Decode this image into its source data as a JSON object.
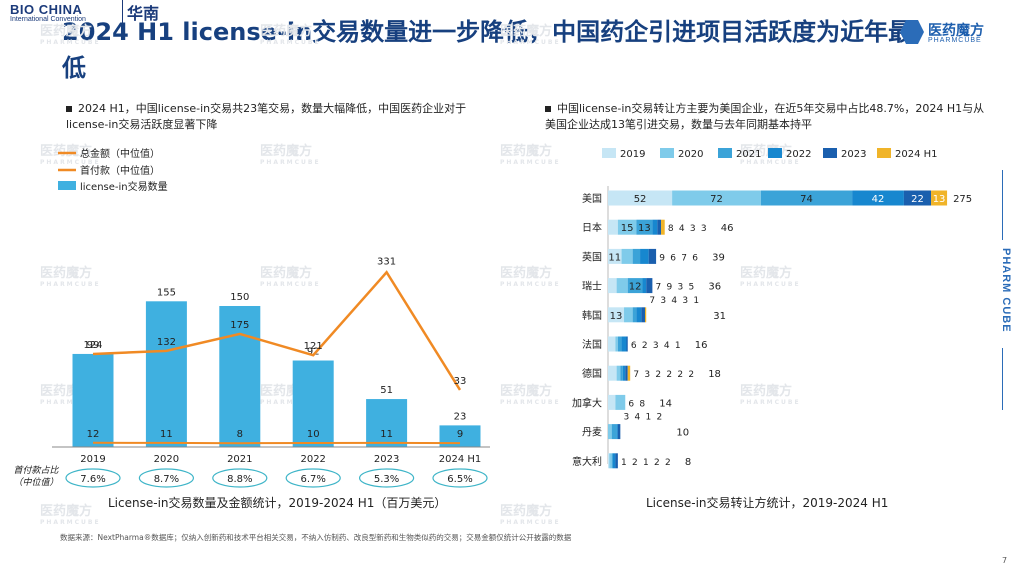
{
  "brand": {
    "bio": "BIO CHINA",
    "convention": "International Convention",
    "region": "华南"
  },
  "title": "2024 H1 license-in交易数量进一步降低，中国药企引进项目活跃度为近年最低",
  "logo": {
    "cn": "医药魔方",
    "en": "PHARMCUBE",
    "side": "PHARM CUBE"
  },
  "bullet_left": "2024 H1，中国license-in交易共23笔交易，数量大幅降低，中国医药企业对于license-in交易活跃度显著下降",
  "bullet_right": "中国license-in交易转让方主要为美国企业，在近5年交易中占比48.7%，2024 H1与从美国企业达成13笔引进交易，数量与去年同期基本持平",
  "caption_left": "License-in交易数量及金额统计，2019-2024 H1（百万美元）",
  "caption_right": "License-in交易转让方统计，2019-2024 H1",
  "source": "数据来源：NextPharma®数据库；仅纳入创新药和技术平台相关交易，不纳入仿制药、改良型新药和生物类似药的交易；交易金额仅统计公开披露的数据",
  "page_number": "7",
  "colors": {
    "title": "#17407f",
    "bar": "#3fb0e0",
    "line": "#f08a24",
    "ratio_border": "#3fb5c8"
  },
  "chart_data": [
    {
      "type": "bar",
      "categories": [
        "2019",
        "2020",
        "2021",
        "2022",
        "2023",
        "2024 H1"
      ],
      "series": [
        {
          "name": "license-in交易数量",
          "values": [
            99,
            155,
            150,
            92,
            51,
            23
          ]
        },
        {
          "name": "总金额（中位值）",
          "values": [
            124,
            132,
            175,
            121,
            331,
            33
          ]
        },
        {
          "name": "首付款（中位值）",
          "values": [
            12,
            11,
            8,
            10,
            11,
            9
          ]
        }
      ],
      "ratio_label": "首付款占比（中位值）",
      "ratios": [
        "7.6%",
        "8.7%",
        "8.8%",
        "6.7%",
        "5.3%",
        "6.5%"
      ]
    },
    {
      "type": "bar",
      "stacked": true,
      "orientation": "horizontal",
      "series_names": [
        "2019",
        "2020",
        "2021",
        "2022",
        "2023",
        "2024 H1"
      ],
      "series_colors": [
        "#c6e6f5",
        "#7fcbea",
        "#3ba3d8",
        "#1787cf",
        "#1a5fae",
        "#f0b429"
      ],
      "rows": [
        {
          "label": "美国",
          "values": [
            52,
            72,
            74,
            42,
            22,
            13
          ],
          "total": 275
        },
        {
          "label": "日本",
          "values": [
            8,
            15,
            13,
            4,
            3,
            3
          ],
          "total": 46
        },
        {
          "label": "英国",
          "values": [
            11,
            9,
            6,
            7,
            6,
            0
          ],
          "total": 39
        },
        {
          "label": "瑞士",
          "values": [
            7,
            9,
            12,
            3,
            5,
            0
          ],
          "total": 36
        },
        {
          "label": "韩国",
          "values": [
            13,
            7,
            3,
            4,
            3,
            1
          ],
          "total": 31
        },
        {
          "label": "法国",
          "values": [
            6,
            2,
            3,
            4,
            1,
            0
          ],
          "total": 16
        },
        {
          "label": "德国",
          "values": [
            7,
            3,
            2,
            2,
            2,
            2
          ],
          "total": 18
        },
        {
          "label": "加拿大",
          "values": [
            6,
            8,
            0,
            0,
            0,
            0
          ],
          "total": 14
        },
        {
          "label": "丹麦",
          "values": [
            0,
            3,
            4,
            1,
            2,
            0
          ],
          "total": 10
        },
        {
          "label": "意大利",
          "values": [
            1,
            2,
            1,
            2,
            2,
            0
          ],
          "total": 8
        }
      ]
    }
  ]
}
